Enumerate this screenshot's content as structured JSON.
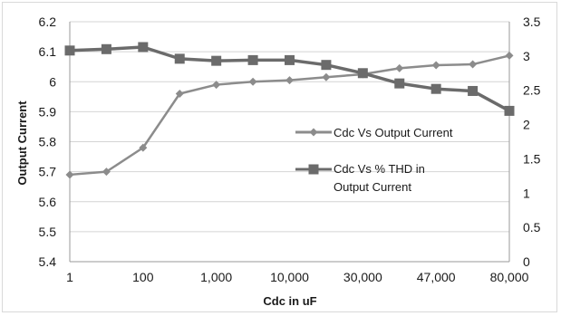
{
  "chart_data": {
    "type": "line",
    "xlabel": "Cdc in uF",
    "ylabel": "Output Current",
    "x_tick_labels": [
      "1",
      "",
      "100",
      "",
      "1,000",
      "",
      "10,000",
      "",
      "30,000",
      "",
      "47,000",
      "",
      "80,000"
    ],
    "left_axis": {
      "ylim": [
        5.4,
        6.2
      ],
      "ticks": [
        "5.4",
        "5.5",
        "5.6",
        "5.7",
        "5.8",
        "5.9",
        "6",
        "6.1",
        "6.2"
      ]
    },
    "right_axis": {
      "ylim": [
        0,
        3.5
      ],
      "ticks": [
        "0",
        "0.5",
        "1",
        "1.5",
        "2",
        "2.5",
        "3",
        "3.5"
      ]
    },
    "grid": true,
    "legend_position": "right",
    "series": [
      {
        "name": "Cdc Vs Output Current",
        "axis": "left",
        "marker": "diamond",
        "color": "#8c8c8c",
        "values": [
          5.69,
          5.7,
          5.78,
          5.96,
          5.99,
          6.0,
          6.005,
          6.015,
          6.025,
          6.045,
          6.055,
          6.058,
          6.087
        ]
      },
      {
        "name": "Cdc Vs % THD in Output Current",
        "name_lines": [
          "Cdc Vs % THD in",
          "Output Current"
        ],
        "axis": "right",
        "marker": "square",
        "color": "#6b6b6b",
        "values": [
          3.08,
          3.1,
          3.13,
          2.96,
          2.93,
          2.94,
          2.94,
          2.87,
          2.75,
          2.6,
          2.52,
          2.49,
          2.2
        ]
      }
    ]
  }
}
